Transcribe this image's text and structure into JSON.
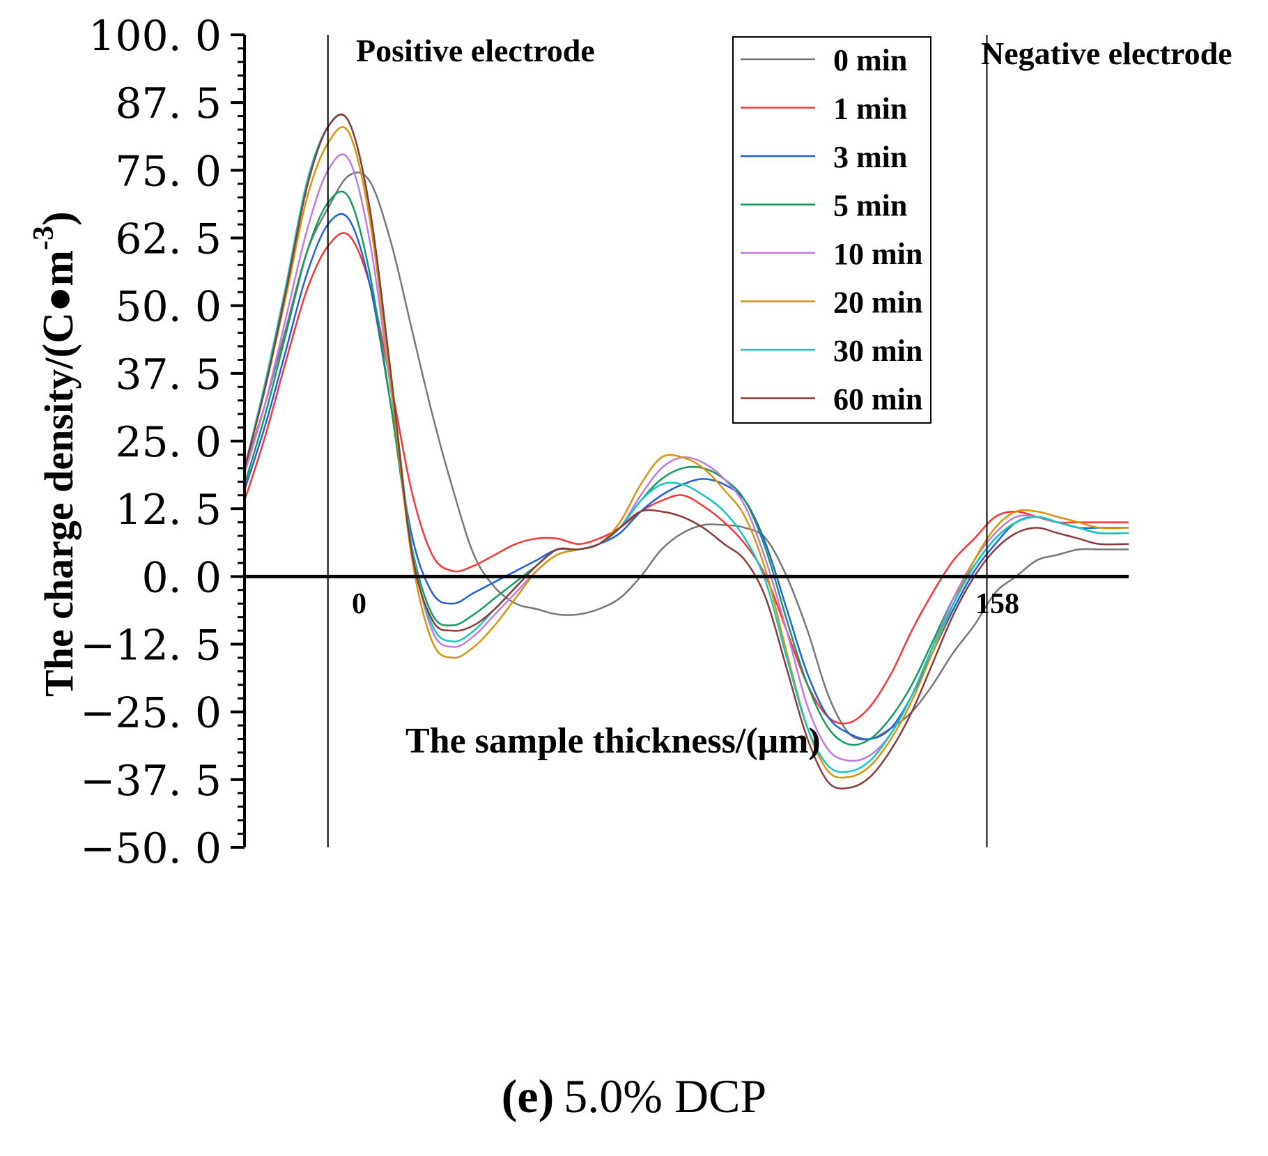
{
  "chart_data": {
    "type": "line",
    "title": "",
    "caption_letter": "(e)",
    "caption_text": "5.0% DCP",
    "xlabel": "The sample thickness/(μm)",
    "ylabel_main": "The charge density/",
    "ylabel_unit": "(C●m",
    "ylabel_unit_exp": "-3",
    "ylabel_unit_close": ")",
    "ylim": [
      -50,
      100
    ],
    "xlim": [
      -20,
      192
    ],
    "yticks": [
      "100. 0",
      "87. 5",
      "75. 0",
      "62. 5",
      "50. 0",
      "37. 5",
      "25. 0",
      "12. 5",
      "0. 0",
      "−12. 5",
      "−25. 0",
      "−37. 5",
      "−50. 0"
    ],
    "ytick_values": [
      100,
      87.5,
      75,
      62.5,
      50,
      37.5,
      25,
      12.5,
      0,
      -12.5,
      -25,
      -37.5,
      -50
    ],
    "xtick_labels": [
      "0",
      "158"
    ],
    "xtick_values": [
      0,
      158
    ],
    "electrodes": [
      {
        "label": "Positive electrode",
        "x": 0
      },
      {
        "label": "Negative electrode",
        "x": 158
      }
    ],
    "legend_position": "top-right",
    "x": [
      -20,
      -15,
      -10,
      -5,
      0,
      5,
      10,
      15,
      20,
      25,
      30,
      35,
      40,
      45,
      50,
      55,
      60,
      65,
      70,
      75,
      80,
      85,
      90,
      95,
      100,
      105,
      110,
      115,
      120,
      125,
      130,
      135,
      140,
      145,
      150,
      155,
      160,
      165,
      170,
      175,
      180,
      185,
      192
    ],
    "series": [
      {
        "name": "0 min",
        "color": "#777777",
        "values": [
          20,
          32,
          46,
          60,
          68,
          74,
          73,
          62,
          46,
          30,
          16,
          4,
          -2,
          -5,
          -6,
          -7,
          -7,
          -6,
          -4,
          0,
          5,
          8,
          9.5,
          9.5,
          9,
          7,
          0,
          -10,
          -22,
          -29,
          -30,
          -28,
          -25,
          -20,
          -14,
          -9,
          -3,
          0,
          3,
          4,
          5,
          5,
          5
        ]
      },
      {
        "name": "1 min",
        "color": "#ff3333",
        "values": [
          14,
          26,
          40,
          53,
          61,
          63,
          54,
          36,
          16,
          4,
          1,
          2,
          4,
          6,
          7,
          7,
          6,
          7,
          9,
          12,
          14,
          15,
          13,
          10,
          6,
          0,
          -10,
          -20,
          -26,
          -27,
          -24,
          -18,
          -10,
          -3,
          3,
          7,
          11,
          12,
          11,
          10,
          10,
          10,
          10
        ]
      },
      {
        "name": "3 min",
        "color": "#1f5fe0",
        "values": [
          16,
          28,
          42,
          56,
          65,
          66,
          54,
          32,
          8,
          -3,
          -5,
          -3,
          -1,
          1,
          3,
          5,
          5,
          6,
          8,
          12,
          15,
          17,
          18,
          17,
          14,
          6,
          -6,
          -18,
          -26,
          -29,
          -30,
          -28,
          -22,
          -14,
          -6,
          1,
          6,
          10,
          11,
          10,
          9,
          9,
          9
        ]
      },
      {
        "name": "5 min",
        "color": "#149a5c",
        "values": [
          17,
          30,
          45,
          60,
          69,
          70,
          56,
          32,
          6,
          -7,
          -9,
          -7,
          -4,
          -1,
          2,
          5,
          5,
          6,
          9,
          14,
          18,
          20,
          20,
          18,
          14,
          5,
          -8,
          -20,
          -28,
          -31,
          -30,
          -26,
          -20,
          -12,
          -4,
          2,
          7,
          10,
          11,
          10,
          9,
          8,
          8
        ]
      },
      {
        "name": "10 min",
        "color": "#c07be0",
        "values": [
          19,
          32,
          48,
          64,
          75,
          77,
          62,
          35,
          6,
          -10,
          -13,
          -11,
          -7,
          -3,
          1,
          4,
          5,
          6,
          9,
          15,
          20,
          22,
          21,
          18,
          13,
          3,
          -10,
          -24,
          -32,
          -34,
          -33,
          -29,
          -22,
          -13,
          -4,
          3,
          8,
          11,
          11,
          10,
          9,
          8,
          8
        ]
      },
      {
        "name": "20 min",
        "color": "#d8950a",
        "values": [
          20,
          35,
          52,
          70,
          80,
          82,
          66,
          36,
          4,
          -12,
          -15,
          -13,
          -9,
          -4,
          1,
          4,
          5,
          6,
          10,
          17,
          22,
          22,
          20,
          16,
          11,
          1,
          -14,
          -28,
          -36,
          -37,
          -35,
          -30,
          -23,
          -14,
          -5,
          3,
          9,
          12,
          12,
          11,
          10,
          9,
          9
        ]
      },
      {
        "name": "30 min",
        "color": "#13c8c0",
        "values": [
          20,
          36,
          54,
          73,
          83,
          84,
          68,
          38,
          6,
          -9,
          -12,
          -10,
          -6,
          -2,
          2,
          5,
          5,
          6,
          9,
          14,
          17,
          17,
          15,
          12,
          7,
          -1,
          -15,
          -28,
          -35,
          -36,
          -34,
          -29,
          -22,
          -13,
          -5,
          2,
          7,
          10,
          11,
          10,
          9,
          8,
          8
        ]
      },
      {
        "name": "60 min",
        "color": "#8b3a3a",
        "values": [
          20,
          35,
          53,
          72,
          83,
          84,
          68,
          38,
          5,
          -8,
          -10,
          -9,
          -6,
          -2,
          2,
          5,
          5,
          6,
          9,
          12,
          12,
          11,
          9,
          6,
          3,
          -4,
          -17,
          -30,
          -38,
          -39,
          -37,
          -32,
          -25,
          -16,
          -7,
          0,
          5,
          8,
          9,
          8,
          7,
          6,
          6
        ]
      }
    ]
  }
}
